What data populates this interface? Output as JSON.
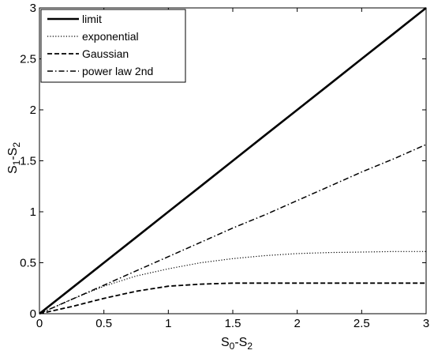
{
  "chart_data": {
    "type": "line",
    "xlim": [
      0,
      3
    ],
    "ylim": [
      0,
      3
    ],
    "xticks": [
      "0",
      "0.5",
      "1",
      "1.5",
      "2",
      "2.5",
      "3"
    ],
    "yticks": [
      "0",
      "0.5",
      "1",
      "1.5",
      "2",
      "2.5",
      "3"
    ],
    "xlabel": {
      "main": "S",
      "sub1": "0",
      "mid": "-S",
      "sub2": "2"
    },
    "ylabel": {
      "main": "S",
      "sub1": "1",
      "mid": "-S",
      "sub2": "2"
    },
    "grid": false,
    "legend_position": "top-left",
    "x": [
      0,
      0.25,
      0.5,
      0.75,
      1.0,
      1.25,
      1.5,
      1.75,
      2.0,
      2.25,
      2.5,
      2.75,
      3.0
    ],
    "series": [
      {
        "name": "limit",
        "style": "solid",
        "values": [
          0,
          0.25,
          0.5,
          0.75,
          1.0,
          1.25,
          1.5,
          1.75,
          2.0,
          2.25,
          2.5,
          2.75,
          3.0
        ]
      },
      {
        "name": "exponential",
        "style": "dotted",
        "values": [
          0,
          0.14,
          0.27,
          0.37,
          0.44,
          0.5,
          0.54,
          0.57,
          0.59,
          0.6,
          0.605,
          0.61,
          0.61
        ]
      },
      {
        "name": "Gaussian",
        "style": "dashed",
        "values": [
          0,
          0.07,
          0.15,
          0.22,
          0.27,
          0.29,
          0.3,
          0.3,
          0.3,
          0.3,
          0.3,
          0.3,
          0.3
        ]
      },
      {
        "name": "power law 2nd",
        "style": "dashdot",
        "values": [
          0,
          0.14,
          0.28,
          0.42,
          0.56,
          0.7,
          0.84,
          0.97,
          1.11,
          1.25,
          1.39,
          1.52,
          1.66
        ]
      }
    ]
  }
}
